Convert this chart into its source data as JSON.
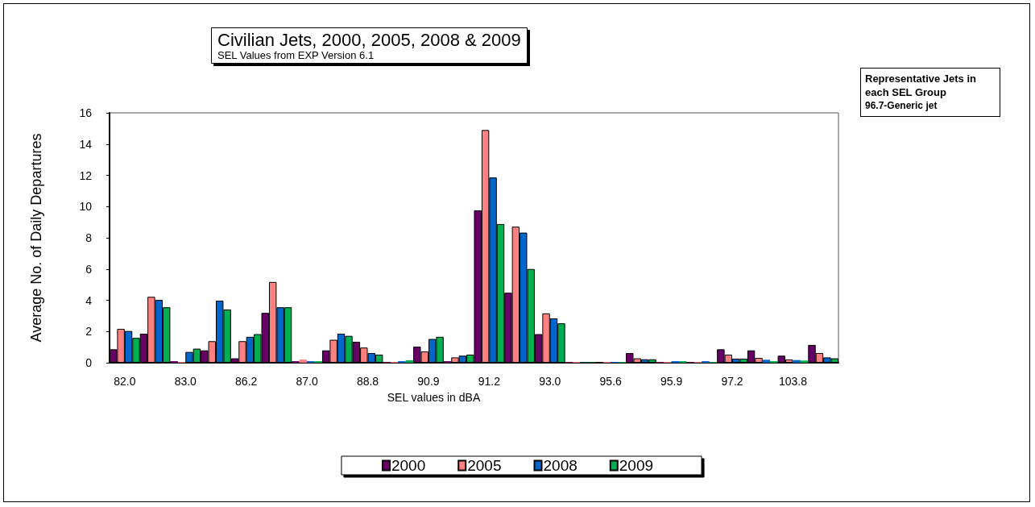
{
  "chart_data": {
    "type": "bar",
    "title": "Civilian Jets, 2000, 2005, 2008 & 2009",
    "subtitle": "SEL Values from EXP Version 6.1",
    "xlabel": "SEL values in dBA",
    "ylabel": "Average No. of Daily Departures",
    "categories": [
      "82.0",
      null,
      "83.0",
      null,
      "86.2",
      null,
      "87.0",
      null,
      "88.8",
      null,
      "90.9",
      null,
      "91.2",
      null,
      "93.0",
      null,
      "95.6",
      null,
      "95.9",
      null,
      "97.2",
      null,
      "103.8",
      null
    ],
    "series": [
      {
        "name": "2000",
        "color": "#660066",
        "values": [
          0.86,
          1.86,
          0.1,
          0.79,
          0.28,
          3.19,
          0.1,
          0.79,
          1.34,
          0.05,
          1.03,
          0.1,
          9.76,
          4.48,
          1.83,
          0.05,
          null,
          0.62,
          0.05,
          0.05,
          0.86,
          0.79,
          0.45,
          1.14
        ]
      },
      {
        "name": "2005",
        "color": "#ff8080",
        "values": [
          2.17,
          4.22,
          0.05,
          1.38,
          1.38,
          5.17,
          0.2,
          1.47,
          0.97,
          0.05,
          0.72,
          0.34,
          14.9,
          8.71,
          3.16,
          0.05,
          0.05,
          0.28,
          0.05,
          0.05,
          0.52,
          0.31,
          0.21,
          0.62
        ]
      },
      {
        "name": "2008",
        "color": "#0066cc",
        "values": [
          2.03,
          4.02,
          0.69,
          3.97,
          1.66,
          3.55,
          0.1,
          1.86,
          0.62,
          0.1,
          1.52,
          0.45,
          11.86,
          8.33,
          2.84,
          0.03,
          0.05,
          0.22,
          0.1,
          0.1,
          0.26,
          0.19,
          0.17,
          0.34
        ]
      },
      {
        "name": "2009",
        "color": "#00b050",
        "values": [
          1.59,
          3.55,
          0.9,
          3.41,
          1.83,
          3.55,
          0.1,
          1.72,
          0.52,
          0.15,
          1.66,
          0.52,
          8.88,
          6.0,
          2.52,
          0.03,
          0.05,
          0.22,
          0.1,
          0.05,
          0.26,
          0.1,
          0.14,
          0.28
        ]
      }
    ],
    "ylim": [
      0,
      16
    ],
    "yticks": [
      0,
      2,
      4,
      6,
      8,
      10,
      12,
      14,
      16
    ],
    "grid": false,
    "legend": "bottom",
    "annotations": [
      "Representative Jets in each SEL Group",
      "96.7-Generic jet"
    ]
  }
}
